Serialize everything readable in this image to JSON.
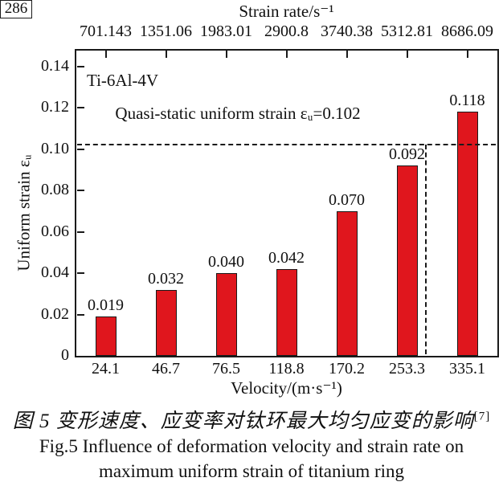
{
  "chart_data": {
    "type": "bar",
    "annotation": "Ti-6Al-4V",
    "top_axis_label": "Strain rate/s⁻¹",
    "xlabel": "Velocity/(m·s⁻¹)",
    "ylabel": "Uniform strain εᵤ",
    "categories": [
      "24.1",
      "46.7",
      "76.5",
      "118.8",
      "170.2",
      "253.3",
      "335.1"
    ],
    "top_categories": [
      "701.143",
      "1351.06",
      "1983.01",
      "2900.8",
      "3740.38",
      "5312.81",
      "8686.09"
    ],
    "values": [
      0.019,
      0.032,
      0.04,
      0.042,
      0.07,
      0.092,
      0.118
    ],
    "bar_value_labels": [
      "0.019",
      "0.032",
      "0.040",
      "0.042",
      "0.070",
      "0.092",
      "0.118"
    ],
    "y_ticks": [
      "0",
      "0.02",
      "0.04",
      "0.06",
      "0.08",
      "0.10",
      "0.12",
      "0.14"
    ],
    "ylim": [
      0,
      0.148
    ],
    "grid": false,
    "legend_position": "none",
    "reference_line": {
      "value": 0.102,
      "label": "Quasi-static uniform strain εᵤ=0.102"
    },
    "vline_marker": {
      "label": "286"
    },
    "bar_color": "#e0161d"
  },
  "caption": {
    "zh": "图 5  变形速度、应变率对钛环最大均匀应变的影响",
    "zh_ref": "[7]",
    "en_line1": "Fig.5 Influence of deformation velocity and strain rate on",
    "en_line2": "maximum uniform strain of titanium ring"
  }
}
